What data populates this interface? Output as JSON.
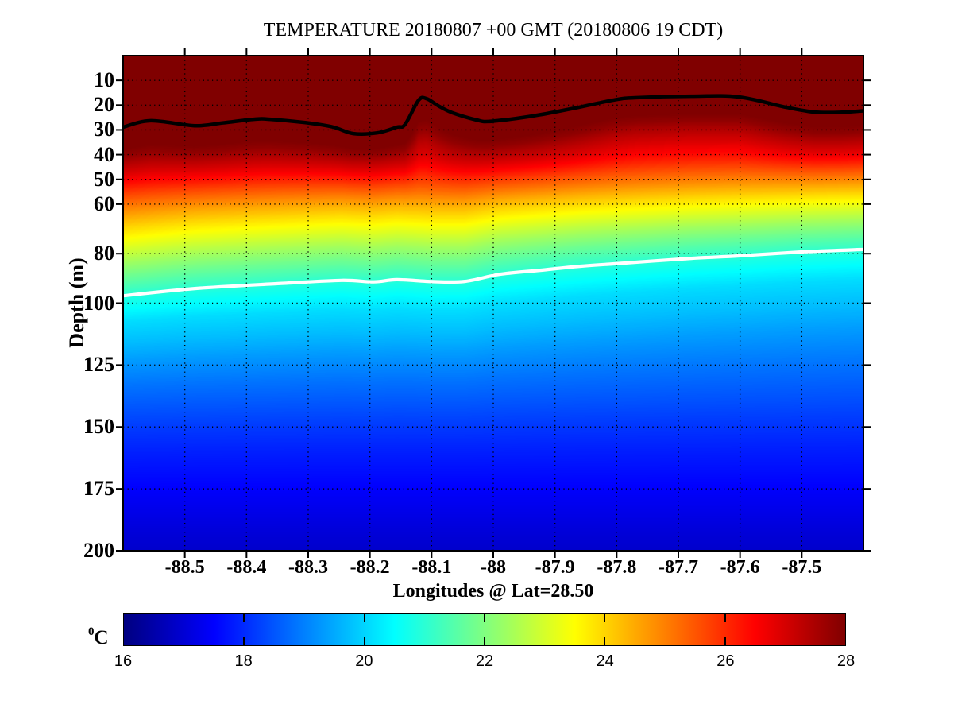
{
  "chart_data": {
    "type": "heatmap",
    "title": "TEMPERATURE 20180807 +00 GMT (20180806 19 CDT)",
    "xlabel": "Longitudes @ Lat=28.50",
    "ylabel": "Depth (m)",
    "x_axis": {
      "range": [
        -88.6,
        -87.4
      ],
      "ticks": [
        -88.5,
        -88.4,
        -88.3,
        -88.2,
        -88.1,
        -88,
        -87.9,
        -87.8,
        -87.7,
        -87.6,
        -87.5
      ],
      "tick_labels": [
        "-88.5",
        "-88.4",
        "-88.3",
        "-88.2",
        "-88.1",
        "-88",
        "-87.9",
        "-87.8",
        "-87.7",
        "-87.6",
        "-87.5"
      ]
    },
    "y_axis": {
      "range": [
        0,
        200
      ],
      "direction": "down",
      "ticks": [
        10,
        20,
        30,
        40,
        50,
        60,
        80,
        100,
        125,
        150,
        175,
        200
      ],
      "units": "m"
    },
    "grid": {
      "style": "dotted",
      "color": "#000000"
    },
    "colormap": "jet",
    "colorbar": {
      "orientation": "horizontal",
      "label_sup": "0",
      "label_base": "C",
      "range": [
        16,
        28
      ],
      "ticks": [
        16,
        18,
        20,
        22,
        24,
        26,
        28
      ],
      "tick_labels": [
        "16",
        "18",
        "20",
        "22",
        "24",
        "26",
        "28"
      ]
    },
    "temperature_profile": {
      "depths_m": [
        0,
        30,
        34,
        38,
        42,
        46,
        50,
        54,
        58,
        62,
        66,
        70,
        75,
        80,
        85,
        90,
        95,
        100,
        105,
        110,
        120,
        130,
        140,
        150,
        160,
        170,
        180,
        190,
        200
      ],
      "temps_c": [
        28.05,
        28.05,
        27.8,
        27.35,
        26.9,
        26.35,
        25.7,
        25.1,
        24.5,
        23.95,
        23.45,
        22.95,
        22.35,
        21.8,
        21.3,
        20.8,
        20.45,
        20.1,
        19.9,
        19.7,
        19.25,
        18.85,
        18.5,
        18.15,
        17.85,
        17.6,
        17.35,
        17.1,
        16.9
      ]
    },
    "contours": [
      {
        "name": "upper-isotherm",
        "color": "#000000",
        "width": 4.5,
        "reference_depth_m": 23,
        "points_lon_depth": [
          [
            -88.6,
            28.9
          ],
          [
            -88.555,
            26.3
          ],
          [
            -88.484,
            28.3
          ],
          [
            -88.439,
            27.2
          ],
          [
            -88.388,
            25.7
          ],
          [
            -88.362,
            25.7
          ],
          [
            -88.297,
            27.3
          ],
          [
            -88.259,
            28.9
          ],
          [
            -88.227,
            31.5
          ],
          [
            -88.188,
            31.2
          ],
          [
            -88.156,
            28.9
          ],
          [
            -88.143,
            27.8
          ],
          [
            -88.121,
            18.0
          ],
          [
            -88.108,
            17.4
          ],
          [
            -88.089,
            20.3
          ],
          [
            -88.066,
            23.1
          ],
          [
            -88.027,
            26.0
          ],
          [
            -88.008,
            26.6
          ],
          [
            -87.963,
            25.4
          ],
          [
            -87.924,
            23.9
          ],
          [
            -87.86,
            20.8
          ],
          [
            -87.804,
            17.9
          ],
          [
            -87.77,
            17.0
          ],
          [
            -87.679,
            16.4
          ],
          [
            -87.602,
            16.7
          ],
          [
            -87.525,
            20.9
          ],
          [
            -87.48,
            22.8
          ],
          [
            -87.435,
            22.9
          ],
          [
            -87.4,
            22.3
          ]
        ]
      },
      {
        "name": "lower-isotherm",
        "color": "#ffffff",
        "width": 4.2,
        "reference_depth_m": 88,
        "points_lon_depth": [
          [
            -88.6,
            97.0
          ],
          [
            -88.484,
            94.1
          ],
          [
            -88.349,
            92.1
          ],
          [
            -88.246,
            90.8
          ],
          [
            -88.194,
            91.4
          ],
          [
            -88.156,
            90.5
          ],
          [
            -88.098,
            91.3
          ],
          [
            -88.046,
            91.2
          ],
          [
            -87.989,
            88.3
          ],
          [
            -87.924,
            86.7
          ],
          [
            -87.86,
            85.1
          ],
          [
            -87.804,
            84.1
          ],
          [
            -87.679,
            81.9
          ],
          [
            -87.602,
            80.9
          ],
          [
            -87.5,
            79.3
          ],
          [
            -87.4,
            78.3
          ]
        ]
      }
    ]
  }
}
